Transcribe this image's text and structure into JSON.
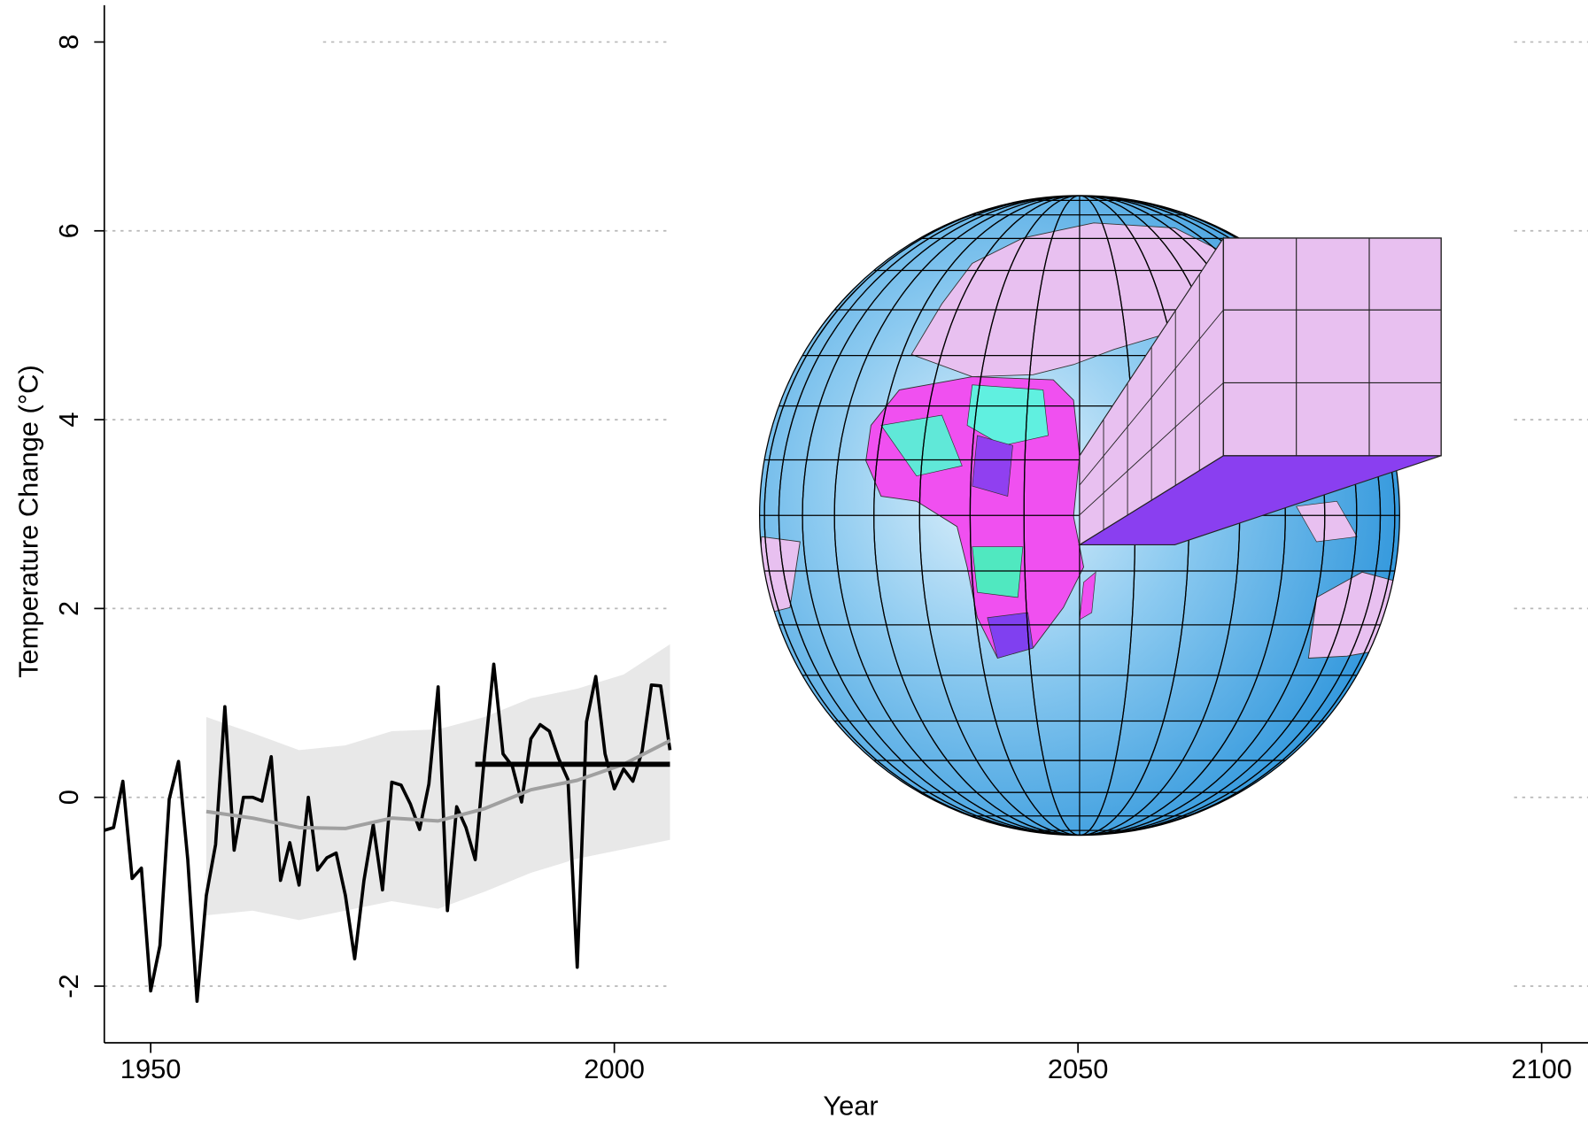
{
  "chart_data": {
    "type": "line",
    "x_label": "Year",
    "y_label": "Temperature Change (°C)",
    "xlim": [
      1945,
      2105
    ],
    "ylim": [
      -2.6,
      8.4
    ],
    "xticks": [
      1950,
      2000,
      2050,
      2100
    ],
    "yticks": [
      -2,
      0,
      2,
      4,
      6,
      8
    ],
    "grid": true,
    "series": [
      {
        "color": "#000000",
        "x": [
          1945,
          1946,
          1947,
          1948,
          1949,
          1950,
          1951,
          1952,
          1953,
          1954,
          1955,
          1956,
          1957,
          1958,
          1959,
          1960,
          1961,
          1962,
          1963,
          1964,
          1965,
          1966,
          1967,
          1968,
          1969,
          1970,
          1971,
          1972,
          1973,
          1974,
          1975,
          1976,
          1977,
          1978,
          1979,
          1980,
          1981,
          1982,
          1983,
          1984,
          1985,
          1986,
          1987,
          1988,
          1989,
          1990,
          1991,
          1992,
          1993,
          1994,
          1995,
          1996,
          1997,
          1998,
          1999,
          2000,
          2001,
          2002,
          2003,
          2004,
          2005,
          2006
        ],
        "values": [
          -0.35,
          -0.32,
          0.17,
          -0.86,
          -0.75,
          -2.05,
          -1.57,
          -0.02,
          0.38,
          -0.66,
          -2.16,
          -1.04,
          -0.5,
          0.96,
          -0.56,
          0.0,
          0.0,
          -0.04,
          0.43,
          -0.88,
          -0.48,
          -0.93,
          0.0,
          -0.77,
          -0.64,
          -0.59,
          -1.04,
          -1.71,
          -0.88,
          -0.29,
          -0.98,
          0.16,
          0.13,
          -0.07,
          -0.34,
          0.14,
          1.17,
          -1.2,
          -0.1,
          -0.32,
          -0.66,
          0.44,
          1.41,
          0.46,
          0.33,
          -0.05,
          0.62,
          0.77,
          0.7,
          0.41,
          0.19,
          -1.8,
          0.8,
          1.28,
          0.46,
          0.09,
          0.3,
          0.17,
          0.49,
          1.19,
          1.18,
          0.5
        ]
      },
      {
        "color": "#a0a0a0",
        "band_color": "#e8e8e8",
        "x": [
          1956,
          1961,
          1966,
          1971,
          1976,
          1981,
          1986,
          1991,
          1996,
          2001,
          2006
        ],
        "values": [
          -0.15,
          -0.22,
          -0.32,
          -0.33,
          -0.22,
          -0.25,
          -0.12,
          0.08,
          0.18,
          0.35,
          0.6
        ],
        "upper": [
          0.85,
          0.68,
          0.5,
          0.55,
          0.7,
          0.72,
          0.85,
          1.05,
          1.15,
          1.3,
          1.62
        ],
        "lower": [
          -1.25,
          -1.2,
          -1.3,
          -1.2,
          -1.1,
          -1.18,
          -1.0,
          -0.8,
          -0.65,
          -0.55,
          -0.45
        ]
      },
      {
        "color": "#000000",
        "x": [
          1985,
          2006
        ],
        "values": [
          0.35,
          0.35
        ]
      }
    ]
  }
}
